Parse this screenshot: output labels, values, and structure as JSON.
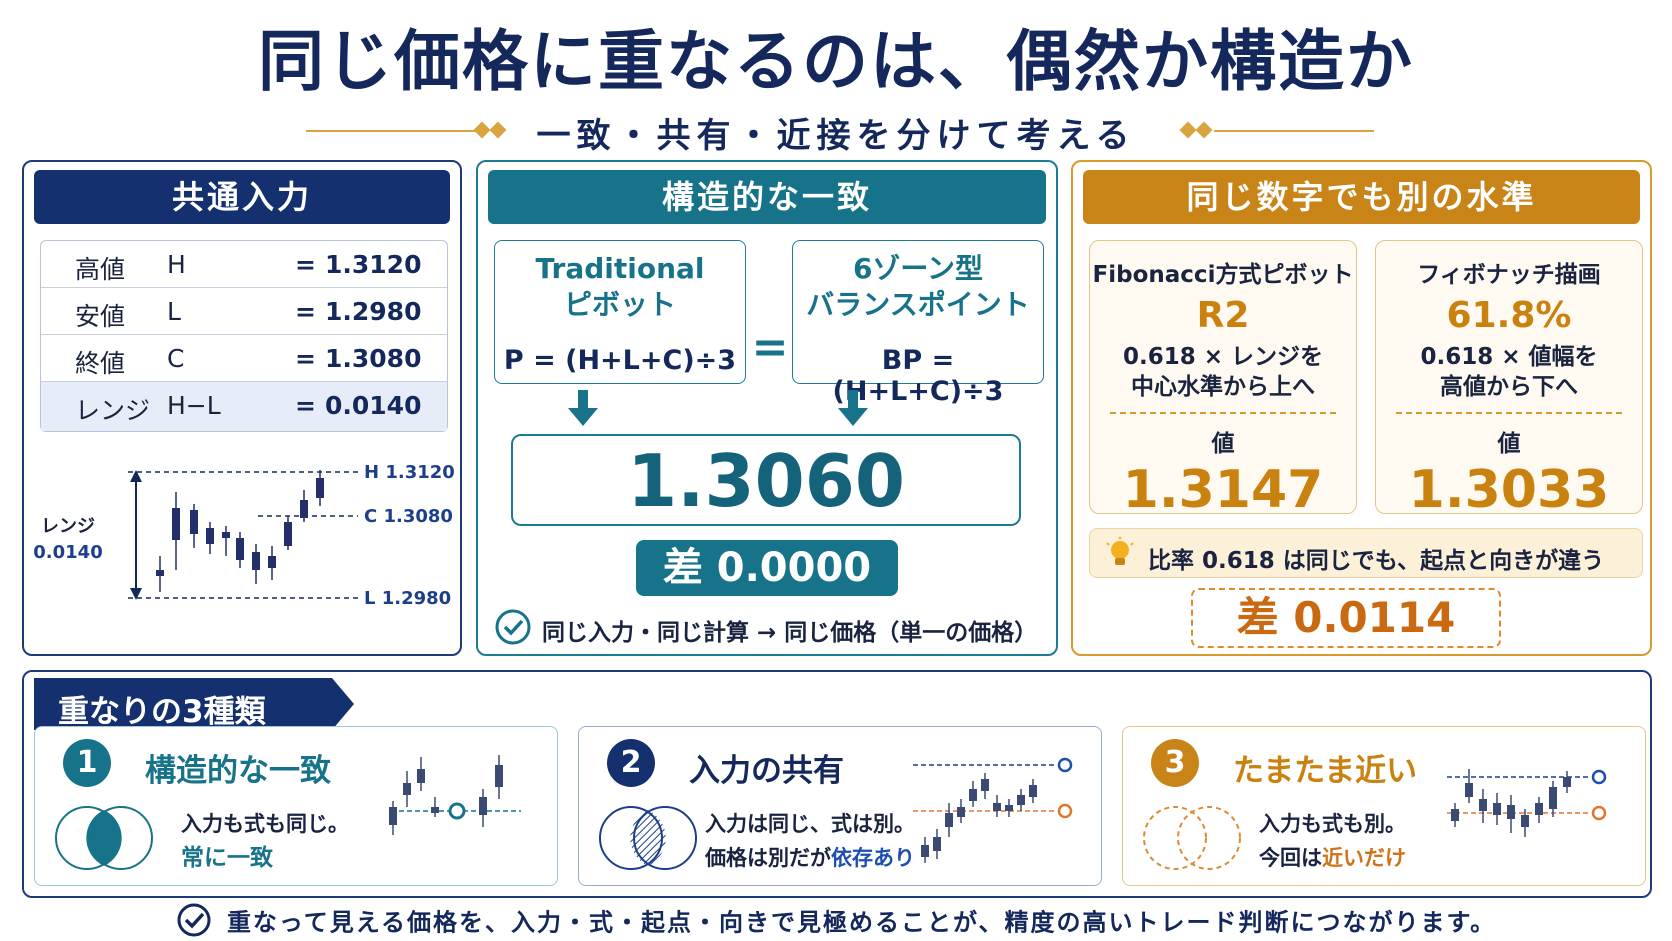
{
  "title": "同じ価格に重なるのは、偶然か構造か",
  "subtitle": "一致・共有・近接を分けて考える",
  "colors": {
    "navy": "#14285c",
    "teal": "#17738a",
    "gold": "#c98210"
  },
  "panel_inputs": {
    "heading": "共通入力",
    "rows": [
      {
        "label": "高値",
        "symbol": "H",
        "eq": "=",
        "value": "1.3120"
      },
      {
        "label": "安値",
        "symbol": "L",
        "eq": "=",
        "value": "1.2980"
      },
      {
        "label": "終値",
        "symbol": "C",
        "eq": "=",
        "value": "1.3080"
      },
      {
        "label": "レンジ",
        "symbol": "H−L",
        "eq": "=",
        "value": "0.0140"
      }
    ],
    "chart": {
      "range_label": "レンジ",
      "range_value": "0.0140",
      "h_label": "H 1.3120",
      "c_label": "C 1.3080",
      "l_label": "L 1.2980"
    }
  },
  "panel_structural": {
    "heading": "構造的な一致",
    "left_title_1": "Traditional",
    "left_title_2": "ピボット",
    "left_formula": "P = (H+L+C)÷3",
    "equals": "=",
    "right_title_1": "6ゾーン型",
    "right_title_2": "バランスポイント",
    "right_formula": "BP = (H+L+C)÷3",
    "result": "1.3060",
    "diff": "差 0.0000",
    "note": "同じ入力・同じ計算 → 同じ価格（単一の価格）"
  },
  "panel_fib": {
    "heading": "同じ数字でも別の水準",
    "card1": {
      "title": "Fibonacci方式ピボット",
      "tag": "R2",
      "desc1": "0.618 × レンジを",
      "desc2": "中心水準から上へ",
      "value_label": "値",
      "value": "1.3147"
    },
    "card2": {
      "title": "フィボナッチ描画",
      "tag": "61.8%",
      "desc1": "0.618 × 値幅を",
      "desc2": "高値から下へ",
      "value_label": "値",
      "value": "1.3033"
    },
    "ratio_note": "比率 0.618 は同じでも、起点と向きが違う",
    "diff": "差 0.0114"
  },
  "overlap_types": {
    "heading": "重なりの3種類",
    "items": [
      {
        "num": "1",
        "title": "構造的な一致",
        "desc1": "入力も式も同じ。",
        "desc2": "常に一致"
      },
      {
        "num": "2",
        "title": "入力の共有",
        "desc1": "入力は同じ、式は別。",
        "desc2a": "価格は別だが",
        "desc2b": "依存あり"
      },
      {
        "num": "3",
        "title": "たまたま近い",
        "desc1": "入力も式も別。",
        "desc2a": "今回は",
        "desc2b": "近いだけ"
      }
    ]
  },
  "footer": "重なって見える価格を、入力・式・起点・向きで見極めることが、精度の高いトレード判断につながります。"
}
